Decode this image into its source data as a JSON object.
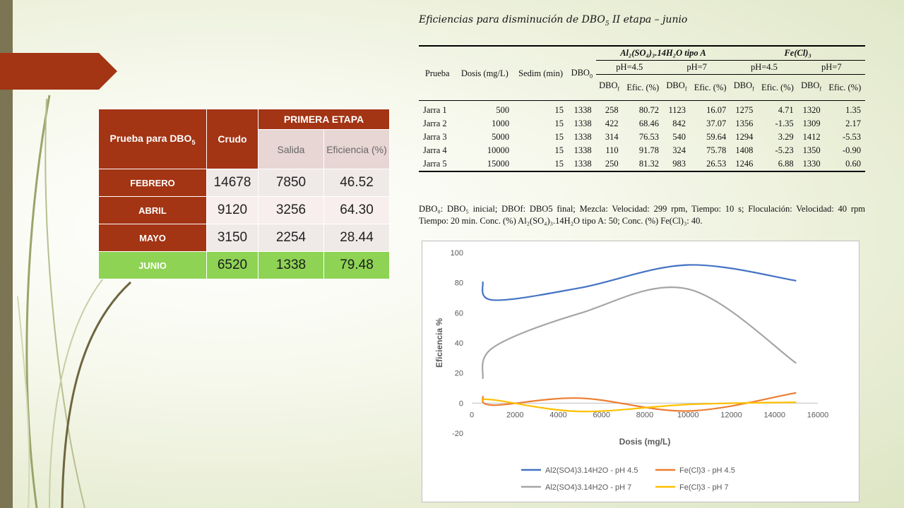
{
  "left_table": {
    "header": {
      "col1_main": "Prueba para DBO",
      "col1_sub": "5",
      "col2": "Crudo",
      "group": "PRIMERA ETAPA",
      "salida": "Salida",
      "eficiencia": "Eficiencia (%)"
    },
    "rows": [
      {
        "label": "FEBRERO",
        "crudo": "14678",
        "salida": "7850",
        "eficiencia": "46.52"
      },
      {
        "label": "ABRIL",
        "crudo": "9120",
        "salida": "3256",
        "eficiencia": "64.30"
      },
      {
        "label": "MAYO",
        "crudo": "3150",
        "salida": "2254",
        "eficiencia": "28.44"
      },
      {
        "label": "JUNIO",
        "crudo": "6520",
        "salida": "1338",
        "eficiencia": "79.48"
      }
    ]
  },
  "right_table": {
    "title_a": "Eficiencias para disminución de DBO",
    "title_sub": "5",
    "title_b": " II etapa – junio",
    "h_prueba": "Prueba",
    "h_dosis": "Dosis (mg/L)",
    "h_sedim": "Sedim (min)",
    "h_dbo0": "DBO",
    "h_dbo0_sub": "0",
    "h_al": "Al₂(SO₄)₃.14H₂O tipo A",
    "h_fe": "Fe(Cl)₃",
    "ph45": "pH=4.5",
    "ph7": "pH=7",
    "dbof": "DBO",
    "dbof_sub": "f",
    "efic": "Efic. (%)",
    "rows": [
      [
        "Jarra 1",
        "500",
        "15",
        "1338",
        "258",
        "80.72",
        "1123",
        "16.07",
        "1275",
        "4.71",
        "1320",
        "1.35"
      ],
      [
        "Jarra 2",
        "1000",
        "15",
        "1338",
        "422",
        "68.46",
        "842",
        "37.07",
        "1356",
        "-1.35",
        "1309",
        "2.17"
      ],
      [
        "Jarra 3",
        "5000",
        "15",
        "1338",
        "314",
        "76.53",
        "540",
        "59.64",
        "1294",
        "3.29",
        "1412",
        "-5.53"
      ],
      [
        "Jarra 4",
        "10000",
        "15",
        "1338",
        "110",
        "91.78",
        "324",
        "75.78",
        "1408",
        "-5.23",
        "1350",
        "-0.90"
      ],
      [
        "Jarra 5",
        "15000",
        "15",
        "1338",
        "250",
        "81.32",
        "983",
        "26.53",
        "1246",
        "6.88",
        "1330",
        "0.60"
      ]
    ],
    "note": "DBO₀: DBO₅ inicial; DBOf: DBO5 final; Mezcla: Velocidad: 299 rpm, Tiempo: 10 s; Floculación: Velocidad: 40 rpm Tiempo: 20 min. Conc. (%) Al₂(SO₄)₃.14H₂O tipo A: 50; Conc. (%) Fe(Cl)₃: 40."
  },
  "chart_data": {
    "type": "line",
    "xlabel": "Dosis (mg/L)",
    "ylabel": "Eficiencia %",
    "xlim": [
      0,
      16000
    ],
    "ylim": [
      -20,
      100
    ],
    "xticks": [
      0,
      2000,
      4000,
      6000,
      8000,
      10000,
      12000,
      14000,
      16000
    ],
    "yticks": [
      -20,
      0,
      20,
      40,
      60,
      80,
      100
    ],
    "grid": false,
    "legend_position": "bottom",
    "x": [
      500,
      1000,
      5000,
      10000,
      15000
    ],
    "series": [
      {
        "name": "Al2(SO4)3.14H2O - pH 4.5",
        "color": "#4472c4",
        "values": [
          80.72,
          68.46,
          76.53,
          91.78,
          81.32
        ]
      },
      {
        "name": "Fe(Cl)3 - pH 4.5",
        "color": "#ed7d31",
        "values": [
          4.71,
          -1.35,
          3.29,
          -5.23,
          6.88
        ]
      },
      {
        "name": "Al2(SO4)3.14H2O - pH 7",
        "color": "#a5a5a5",
        "values": [
          16.07,
          37.07,
          59.64,
          75.78,
          26.53
        ]
      },
      {
        "name": "Fe(Cl)3 - pH 7",
        "color": "#ffc000",
        "values": [
          1.35,
          2.17,
          -5.53,
          -0.9,
          0.6
        ]
      }
    ]
  }
}
